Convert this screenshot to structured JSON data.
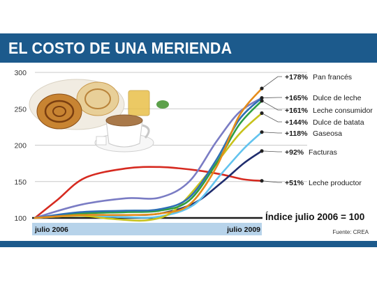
{
  "title": "EL COSTO DE UNA MERIENDA",
  "source": "Fuente: CREA",
  "colors": {
    "header": "#1c5a8c",
    "xband": "#b7d3ea",
    "grid": "#c9c9c9",
    "pan_frances": "#e58c1a",
    "dulce_de_leche": "#2e6fb4",
    "leche_consumidor": "#2f9e43",
    "dulce_de_batata": "#c8c21c",
    "gaseosa": "#62c3ee",
    "facturas": "#7a7cc4",
    "leche_productor": "#d62a20",
    "index_line": "#1a1a1a"
  },
  "illustration": "pastries-and-coffee-cup",
  "chart_data": {
    "type": "line",
    "ylim": [
      100,
      300
    ],
    "yticks": [
      100,
      150,
      200,
      250,
      300
    ],
    "x_range": [
      0,
      1
    ],
    "x_tick_labels": [
      "julio 2006",
      "julio 2009"
    ],
    "reference_label": "Índice julio 2006 = 100",
    "reference_value": 100,
    "series": [
      {
        "key": "pan_frances",
        "pct": "+178%",
        "label": "Pan francés",
        "color": "#e58c1a",
        "end": 278,
        "points": [
          [
            0,
            100
          ],
          [
            0.2,
            104
          ],
          [
            0.4,
            104
          ],
          [
            0.55,
            106
          ],
          [
            0.68,
            118
          ],
          [
            0.8,
            170
          ],
          [
            0.9,
            240
          ],
          [
            1,
            278
          ]
        ]
      },
      {
        "key": "dulce_de_leche",
        "pct": "+165%",
        "label": "Dulce de leche",
        "color": "#2e6fb4",
        "end": 265,
        "points": [
          [
            0,
            100
          ],
          [
            0.2,
            108
          ],
          [
            0.4,
            110
          ],
          [
            0.55,
            112
          ],
          [
            0.68,
            128
          ],
          [
            0.8,
            180
          ],
          [
            0.9,
            235
          ],
          [
            1,
            265
          ]
        ]
      },
      {
        "key": "leche_consumidor",
        "pct": "+161%",
        "label": "Leche consumidor",
        "color": "#2f9e43",
        "end": 261,
        "points": [
          [
            0,
            100
          ],
          [
            0.2,
            106
          ],
          [
            0.4,
            108
          ],
          [
            0.55,
            110
          ],
          [
            0.68,
            124
          ],
          [
            0.8,
            175
          ],
          [
            0.9,
            228
          ],
          [
            1,
            261
          ]
        ]
      },
      {
        "key": "dulce_de_batata",
        "pct": "+144%",
        "label": "Dulce de batata",
        "color": "#c8c21c",
        "end": 244,
        "points": [
          [
            0,
            100
          ],
          [
            0.2,
            103
          ],
          [
            0.33,
            99
          ],
          [
            0.5,
            97
          ],
          [
            0.62,
            112
          ],
          [
            0.78,
            168
          ],
          [
            0.9,
            215
          ],
          [
            1,
            244
          ]
        ]
      },
      {
        "key": "gaseosa",
        "pct": "+118%",
        "label": "Gaseosa",
        "color": "#62c3ee",
        "end": 218,
        "points": [
          [
            0,
            100
          ],
          [
            0.2,
            103
          ],
          [
            0.4,
            101
          ],
          [
            0.55,
            102
          ],
          [
            0.7,
            118
          ],
          [
            0.82,
            160
          ],
          [
            0.92,
            195
          ],
          [
            1,
            218
          ]
        ]
      },
      {
        "key": "facturas",
        "pct": "+92%",
        "label": "Facturas",
        "color": "#1f2d6e",
        "end": 192,
        "points": [
          [
            0,
            100
          ],
          [
            0.2,
            104
          ],
          [
            0.4,
            104
          ],
          [
            0.55,
            106
          ],
          [
            0.7,
            120
          ],
          [
            0.82,
            148
          ],
          [
            0.92,
            175
          ],
          [
            1,
            192
          ]
        ]
      },
      {
        "key": "leche_productor",
        "pct": "+51%",
        "label": "Leche productor",
        "color": "#d62a20",
        "end": 151,
        "points": [
          [
            0,
            100
          ],
          [
            0.1,
            125
          ],
          [
            0.22,
            155
          ],
          [
            0.4,
            168
          ],
          [
            0.55,
            170
          ],
          [
            0.7,
            166
          ],
          [
            0.82,
            160
          ],
          [
            0.92,
            153
          ],
          [
            1,
            151
          ]
        ]
      },
      {
        "key": "extra_purple",
        "pct": "",
        "label": "",
        "color": "#7a7cc4",
        "end": 265,
        "points": [
          [
            0,
            100
          ],
          [
            0.2,
            118
          ],
          [
            0.4,
            127
          ],
          [
            0.55,
            128
          ],
          [
            0.68,
            150
          ],
          [
            0.8,
            205
          ],
          [
            0.9,
            245
          ],
          [
            1,
            265
          ]
        ]
      }
    ]
  }
}
